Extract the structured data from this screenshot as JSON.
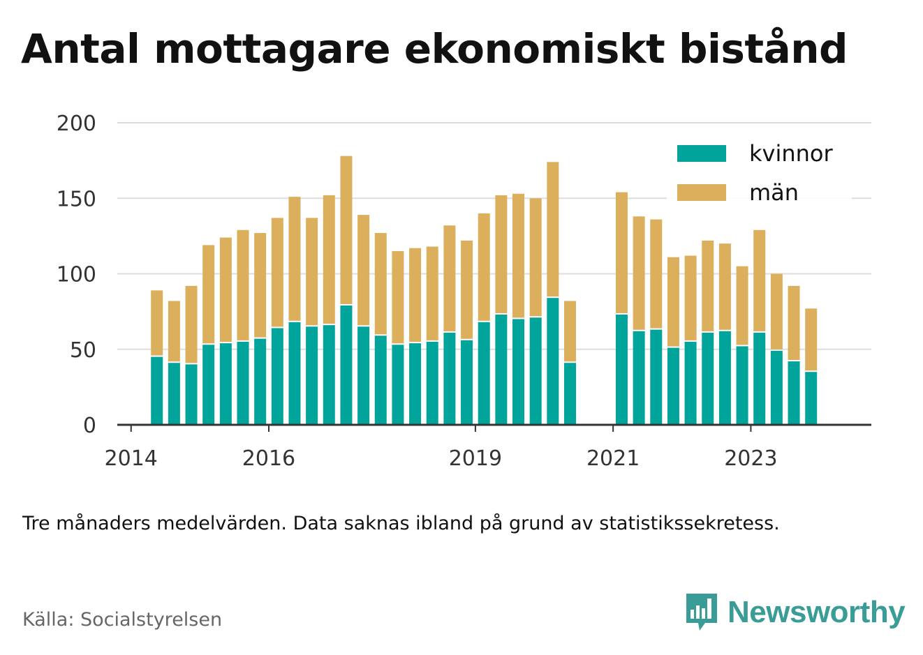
{
  "header": {
    "title": "Antal mottagare ekonomiskt bistånd"
  },
  "footer": {
    "note": "Tre månaders medelvärden. Data saknas ibland på grund av statistikssekretess.",
    "source": "Källa: Socialstyrelsen",
    "brand": "Newsworthy"
  },
  "colors": {
    "kvinnor": "#00a49a",
    "man": "#dcaf5d",
    "grid": "#dddddd",
    "axis": "#333333",
    "brand": "#3a9c96"
  },
  "chart_data": {
    "type": "bar",
    "stacked": true,
    "ylim": [
      0,
      200
    ],
    "yticks": [
      0,
      50,
      100,
      150,
      200
    ],
    "xlim": [
      2013.8,
      2024.75
    ],
    "xticks": [
      {
        "label": "2014",
        "x": 2014.0
      },
      {
        "label": "2016",
        "x": 2016.0
      },
      {
        "label": "2019",
        "x": 2019.0
      },
      {
        "label": "2021",
        "x": 2021.0
      },
      {
        "label": "2023",
        "x": 2023.0
      }
    ],
    "grid": true,
    "legend_position": "top-right",
    "x": [
      2014.375,
      2014.625,
      2014.875,
      2015.125,
      2015.375,
      2015.625,
      2015.875,
      2016.125,
      2016.375,
      2016.625,
      2016.875,
      2017.125,
      2017.375,
      2017.625,
      2017.875,
      2018.125,
      2018.375,
      2018.625,
      2018.875,
      2019.125,
      2019.375,
      2019.625,
      2019.875,
      2020.125,
      2020.375,
      2021.125,
      2021.375,
      2021.625,
      2021.875,
      2022.125,
      2022.375,
      2022.625,
      2022.875,
      2023.125,
      2023.375,
      2023.625,
      2023.875
    ],
    "series": [
      {
        "name": "kvinnor",
        "values": [
          45,
          41,
          40,
          53,
          54,
          55,
          57,
          64,
          68,
          65,
          66,
          79,
          65,
          59,
          53,
          54,
          55,
          61,
          56,
          68,
          73,
          70,
          71,
          84,
          41,
          73,
          62,
          63,
          51,
          55,
          61,
          62,
          52,
          61,
          49,
          42,
          35
        ]
      },
      {
        "name": "män",
        "values": [
          44,
          41,
          52,
          66,
          70,
          74,
          70,
          73,
          83,
          72,
          86,
          99,
          74,
          68,
          62,
          63,
          63,
          71,
          66,
          72,
          79,
          83,
          79,
          90,
          41,
          81,
          76,
          73,
          60,
          57,
          61,
          58,
          53,
          68,
          51,
          50,
          42
        ]
      }
    ]
  }
}
